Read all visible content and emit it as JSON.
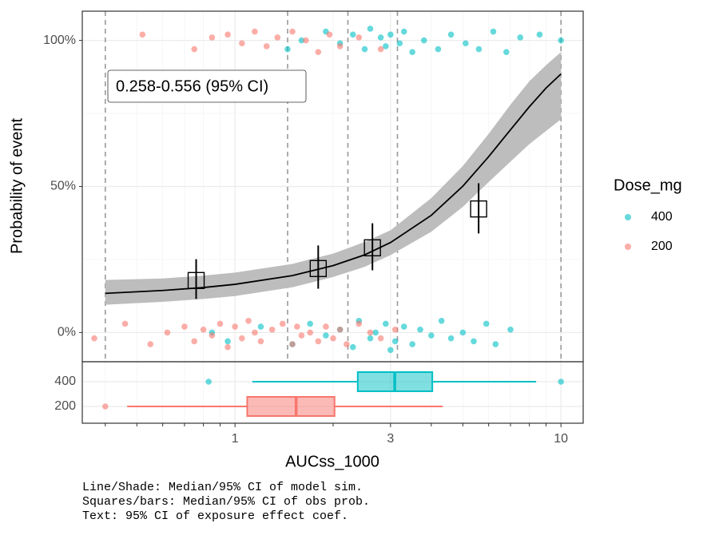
{
  "chart_data": [
    {
      "type": "scatter",
      "ylabel": "Probability of event",
      "ylim": [
        -10,
        110
      ],
      "yticks": [
        {
          "value": 0,
          "label": "0%"
        },
        {
          "value": 50,
          "label": "50%"
        },
        {
          "value": 100,
          "label": "100%"
        }
      ],
      "yminorticks": [
        25,
        75
      ],
      "grid": true,
      "legend_title": "Dose_mg",
      "legend_position": "right",
      "series": [
        {
          "name": "400",
          "color": "#00BFC4",
          "x": [
            1.45,
            1.6,
            1.9,
            2.1,
            2.3,
            2.5,
            2.6,
            2.8,
            2.9,
            3.0,
            3.2,
            3.3,
            3.5,
            3.8,
            4.2,
            4.6,
            5.1,
            5.6,
            6.2,
            6.8,
            7.5,
            8.6,
            10,
            0.85,
            0.95,
            1.2,
            1.5,
            1.7,
            1.9,
            2.1,
            2.3,
            2.4,
            2.6,
            2.7,
            2.9,
            3.1,
            3.3,
            3.5,
            3.7,
            4.0,
            4.3,
            4.6,
            5.0,
            5.4,
            5.9,
            6.3,
            7.0,
            3.0
          ],
          "y": [
            97,
            100,
            103,
            99,
            102,
            97,
            104,
            101,
            98,
            102,
            99,
            103,
            96,
            100,
            97,
            102,
            99,
            97,
            103,
            96,
            101,
            102,
            100,
            0,
            -3,
            2,
            -4,
            3,
            -1,
            1,
            -5,
            4,
            -2,
            0,
            3,
            -3,
            2,
            -4,
            1,
            -1,
            4,
            -2,
            0,
            -3,
            3,
            -4,
            1,
            -6
          ]
        },
        {
          "name": "200",
          "color": "#F8766D",
          "x": [
            0.52,
            0.75,
            0.85,
            0.95,
            1.05,
            1.15,
            1.25,
            1.35,
            1.5,
            1.65,
            1.8,
            1.95,
            2.1,
            2.4,
            2.8,
            0.37,
            0.46,
            0.55,
            0.62,
            0.7,
            0.75,
            0.8,
            0.85,
            0.9,
            0.95,
            1.0,
            1.05,
            1.1,
            1.15,
            1.2,
            1.3,
            1.4,
            1.5,
            1.55,
            1.6,
            1.7,
            1.8,
            1.9,
            2.0,
            2.1,
            2.2,
            2.4,
            2.6,
            2.8,
            3.1
          ],
          "y": [
            102,
            97,
            101,
            102,
            99,
            103,
            98,
            101,
            103,
            100,
            96,
            102,
            98,
            101,
            97,
            -2,
            3,
            -4,
            0,
            2,
            -3,
            1,
            -1,
            3,
            -5,
            2,
            -2,
            4,
            0,
            -3,
            1,
            3,
            -4,
            2,
            -1,
            0,
            -3,
            2,
            -2,
            1,
            -4,
            3,
            0,
            -2,
            1
          ]
        }
      ],
      "model": {
        "x": [
          0.4,
          0.6,
          0.8,
          1,
          1.5,
          2,
          2.5,
          3,
          4,
          5,
          6,
          7,
          8,
          9,
          10
        ],
        "median": [
          13.4,
          14.4,
          15.4,
          16.5,
          19.5,
          22.9,
          26.6,
          30.8,
          40.1,
          50.1,
          60.2,
          69.4,
          77.3,
          83.7,
          88.5
        ],
        "lower": [
          9.5,
          10.5,
          11.5,
          12.5,
          15.5,
          19,
          22.5,
          26.5,
          34.5,
          43,
          51.5,
          58.5,
          64.5,
          69,
          73
        ],
        "upper": [
          18,
          18.5,
          19.5,
          20.5,
          23.5,
          27,
          31,
          35,
          46,
          57,
          68,
          78,
          86,
          91.5,
          96
        ]
      },
      "observed": {
        "x": [
          0.76,
          1.8,
          2.64,
          5.59
        ],
        "values": [
          17.8,
          21.9,
          29.0,
          42.3
        ],
        "lower": [
          11.5,
          15.0,
          21.3,
          33.9
        ],
        "upper": [
          25.1,
          29.8,
          37.4,
          51.1
        ]
      },
      "bin_edges": [
        0.4,
        1.45,
        2.22,
        3.15,
        10
      ],
      "annotation": "0.258-0.556 (95% CI)"
    },
    {
      "type": "boxplot",
      "xlabel": "AUCss_1000",
      "xscale": "log",
      "xlim": [
        0.34,
        11.7
      ],
      "xticks": [
        1,
        3,
        10
      ],
      "xminorticks": [
        0.4,
        0.5,
        0.6,
        0.7,
        0.8,
        0.9,
        2,
        4,
        5,
        6,
        7,
        8,
        9
      ],
      "categories": [
        "400",
        "200"
      ],
      "colors": [
        "#00BFC4",
        "#F8766D"
      ],
      "boxes": [
        {
          "whisker_low": 1.13,
          "q1": 2.38,
          "median": 3.09,
          "q3": 4.03,
          "whisker_high": 8.39,
          "outliers": [
            0.83,
            10
          ]
        },
        {
          "whisker_low": 0.467,
          "q1": 1.09,
          "median": 1.54,
          "q3": 2.02,
          "whisker_high": 4.34,
          "outliers": [
            0.4
          ]
        }
      ]
    }
  ],
  "caption": [
    "Line/Shade: Median/95% CI of model sim.",
    "Squares/bars: Median/95% CI of obs prob.",
    "Text: 95% CI of exposure effect coef."
  ]
}
